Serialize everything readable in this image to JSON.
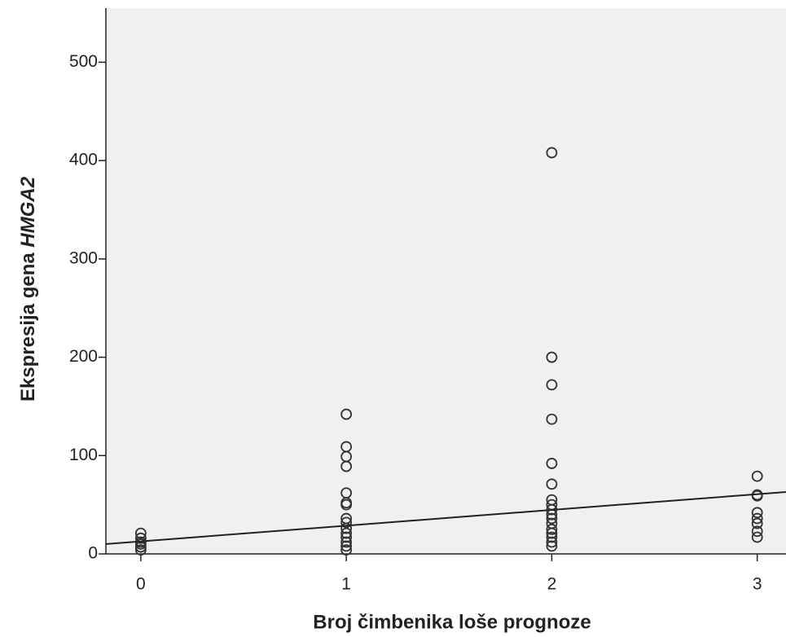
{
  "chart_data": {
    "type": "scatter",
    "x_label": "Broj čimbenika loše prognoze",
    "y_label": "Ekspresija gena",
    "y_label_gene": "HMGA2",
    "xlim": [
      -0.17,
      3.14
    ],
    "ylim": [
      0,
      555
    ],
    "xticks": [
      0,
      1,
      2,
      3
    ],
    "yticks": [
      0,
      100,
      200,
      300,
      400,
      500
    ],
    "color": "#333333",
    "background": "#f0f0f0",
    "series": [
      {
        "x": [
          0,
          0,
          0,
          0,
          0,
          0,
          1,
          1,
          1,
          1,
          1,
          1,
          1,
          1,
          1,
          1,
          1,
          1,
          1,
          1,
          1,
          2,
          2,
          2,
          2,
          2,
          2,
          2,
          2,
          2,
          2,
          2,
          2,
          2,
          2,
          2,
          2,
          2,
          3,
          3,
          3,
          3,
          3,
          3,
          3,
          3
        ],
        "values": [
          21,
          16,
          12,
          10,
          7,
          4,
          142,
          109,
          99,
          89,
          62,
          52,
          50,
          36,
          32,
          26,
          21,
          17,
          12,
          8,
          4,
          408,
          200,
          172,
          137,
          92,
          71,
          55,
          50,
          45,
          40,
          36,
          31,
          25,
          21,
          17,
          12,
          8,
          79,
          60,
          59,
          42,
          36,
          31,
          23,
          17
        ]
      }
    ],
    "fit_line": {
      "x": [
        -0.17,
        3.14
      ],
      "values": [
        10,
        63
      ]
    }
  }
}
